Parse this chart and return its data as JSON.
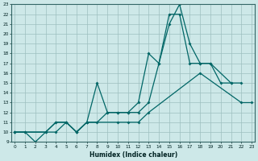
{
  "xlabel": "Humidex (Indice chaleur)",
  "bg_color": "#cde8e8",
  "grid_color": "#9dbfbf",
  "line_color": "#006666",
  "line1_x": [
    0,
    1,
    2,
    3,
    4,
    5,
    6,
    7,
    8,
    9,
    10,
    11,
    12,
    13,
    14,
    15,
    16,
    17,
    18,
    19,
    20,
    21
  ],
  "line1_y": [
    10,
    10,
    9,
    10,
    11,
    11,
    10,
    11,
    15,
    12,
    12,
    12,
    13,
    18,
    17,
    21,
    23,
    19,
    17,
    17,
    15,
    15
  ],
  "line2_x": [
    0,
    3,
    4,
    5,
    6,
    7,
    8,
    9,
    10,
    11,
    12,
    13,
    14,
    15,
    16,
    17,
    18,
    19,
    21,
    22
  ],
  "line2_y": [
    10,
    10,
    11,
    11,
    10,
    11,
    11,
    12,
    12,
    12,
    12,
    13,
    17,
    22,
    22,
    17,
    17,
    17,
    15,
    15
  ],
  "line3_x": [
    0,
    1,
    4,
    5,
    6,
    7,
    10,
    11,
    12,
    13,
    18,
    22,
    23
  ],
  "line3_y": [
    10,
    10,
    10,
    11,
    10,
    11,
    11,
    11,
    11,
    12,
    16,
    13,
    13
  ],
  "ylim": [
    9,
    23
  ],
  "xlim": [
    -0.3,
    23.3
  ],
  "yticks": [
    9,
    10,
    11,
    12,
    13,
    14,
    15,
    16,
    17,
    18,
    19,
    20,
    21,
    22,
    23
  ],
  "xticks": [
    0,
    1,
    2,
    3,
    4,
    5,
    6,
    7,
    8,
    9,
    10,
    11,
    12,
    13,
    14,
    15,
    16,
    17,
    18,
    19,
    20,
    21,
    22,
    23
  ]
}
